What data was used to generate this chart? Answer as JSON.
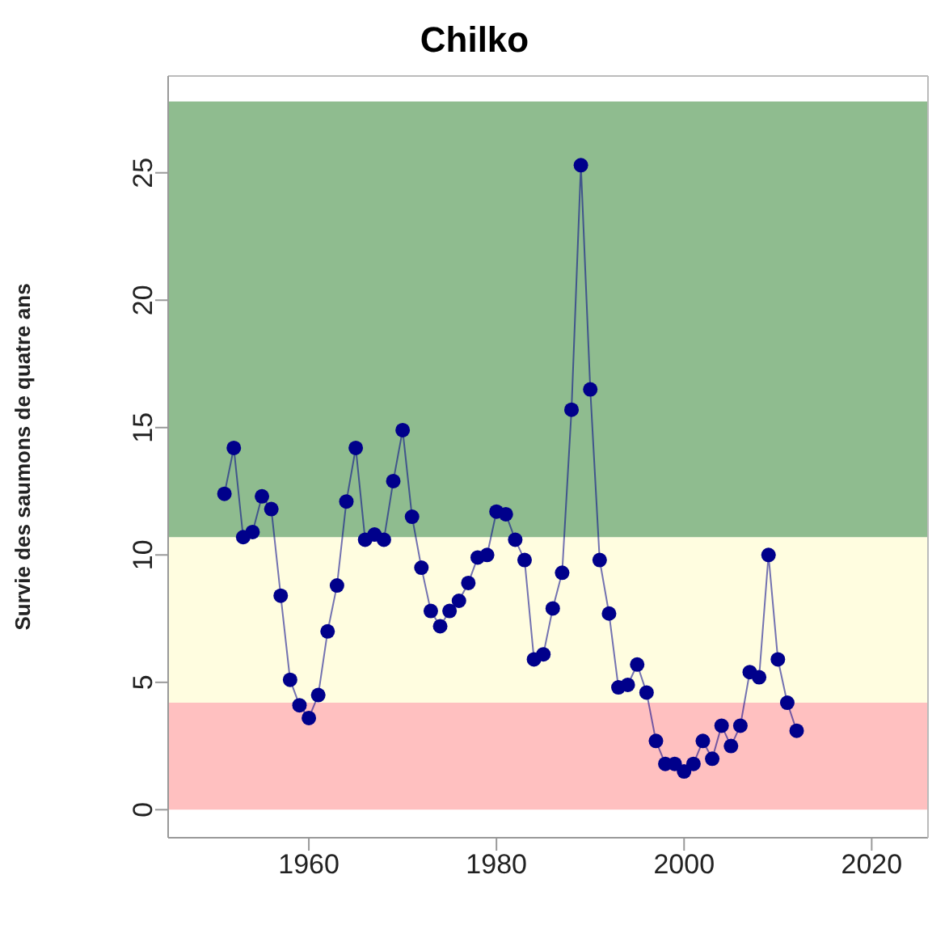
{
  "chart_data": {
    "type": "line",
    "title": "Chilko",
    "ylabel": "Survie des saumons de quatre ans",
    "x": [
      1951,
      1952,
      1953,
      1954,
      1955,
      1956,
      1957,
      1958,
      1959,
      1960,
      1961,
      1962,
      1963,
      1964,
      1965,
      1966,
      1967,
      1968,
      1969,
      1970,
      1971,
      1972,
      1973,
      1974,
      1975,
      1976,
      1977,
      1978,
      1979,
      1980,
      1981,
      1982,
      1983,
      1984,
      1985,
      1986,
      1987,
      1988,
      1989,
      1990,
      1991,
      1992,
      1993,
      1994,
      1995,
      1996,
      1997,
      1998,
      1999,
      2000,
      2001,
      2002,
      2003,
      2004,
      2005,
      2006,
      2007,
      2008,
      2009,
      2010,
      2011,
      2012
    ],
    "series": [
      {
        "color": "#00008b",
        "values": [
          12.4,
          14.2,
          10.7,
          10.9,
          12.3,
          11.8,
          8.4,
          5.1,
          4.1,
          3.6,
          4.5,
          7.0,
          8.8,
          12.1,
          14.2,
          10.6,
          10.8,
          10.6,
          12.9,
          14.9,
          11.5,
          9.5,
          7.8,
          7.2,
          7.8,
          8.2,
          8.9,
          9.9,
          10.0,
          11.7,
          11.6,
          10.6,
          9.8,
          5.9,
          6.1,
          7.9,
          9.3,
          15.7,
          25.3,
          16.5,
          9.8,
          7.7,
          4.8,
          4.9,
          5.7,
          4.6,
          2.7,
          1.8,
          1.8,
          1.5,
          1.8,
          2.7,
          2.0,
          3.3,
          2.5,
          3.3,
          5.4,
          5.2,
          10.0,
          5.9,
          4.2,
          3.1
        ]
      }
    ],
    "xlim": [
      1945,
      2026
    ],
    "xticks": [
      1960,
      1980,
      2000,
      2020
    ],
    "ylim": [
      -1.1,
      28.8
    ],
    "yticks": [
      0,
      5,
      10,
      15,
      20,
      25
    ],
    "marker": "circle",
    "bands": [
      {
        "axis": "y",
        "from": 0,
        "to": 4.2,
        "color": "#ffc0c0"
      },
      {
        "axis": "y",
        "from": 4.2,
        "to": 10.7,
        "color": "#fffde0"
      },
      {
        "axis": "y",
        "from": 10.7,
        "to": 27.8,
        "color": "#8fbc8f"
      }
    ]
  }
}
